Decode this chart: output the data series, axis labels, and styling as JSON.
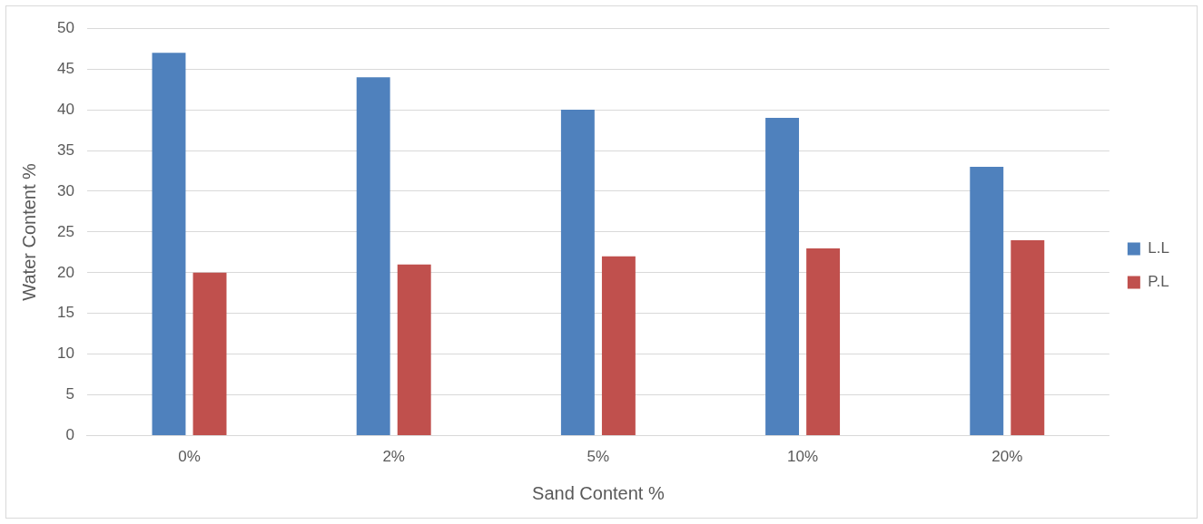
{
  "chart_data": {
    "type": "bar",
    "xlabel": "Sand Content %",
    "ylabel": "Water Content %",
    "categories": [
      "0%",
      "2%",
      "5%",
      "10%",
      "20%"
    ],
    "series": [
      {
        "name": "L.L",
        "color": "#4f81bd",
        "values": [
          47,
          44,
          40,
          39,
          33
        ]
      },
      {
        "name": "P.L",
        "color": "#c0504d",
        "values": [
          20,
          21,
          22,
          23,
          24
        ]
      }
    ],
    "ylim": [
      0,
      50
    ],
    "yticks": [
      0,
      5,
      10,
      15,
      20,
      25,
      30,
      35,
      40,
      45,
      50
    ],
    "grid": "y",
    "legend": "right"
  }
}
